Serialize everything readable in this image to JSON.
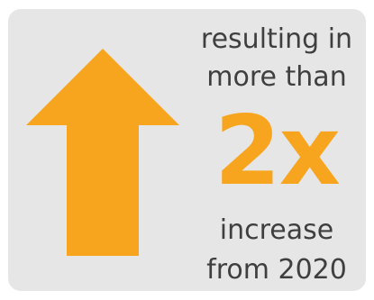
{
  "colors": {
    "card_background": "#e6e6e6",
    "accent": "#f7a51e",
    "text": "#3f3f3f"
  },
  "icon": "arrow-up-icon",
  "text": {
    "line1": "resulting in",
    "line2": "more than",
    "highlight": "2x",
    "line3": "increase",
    "line4": "from 2020"
  }
}
